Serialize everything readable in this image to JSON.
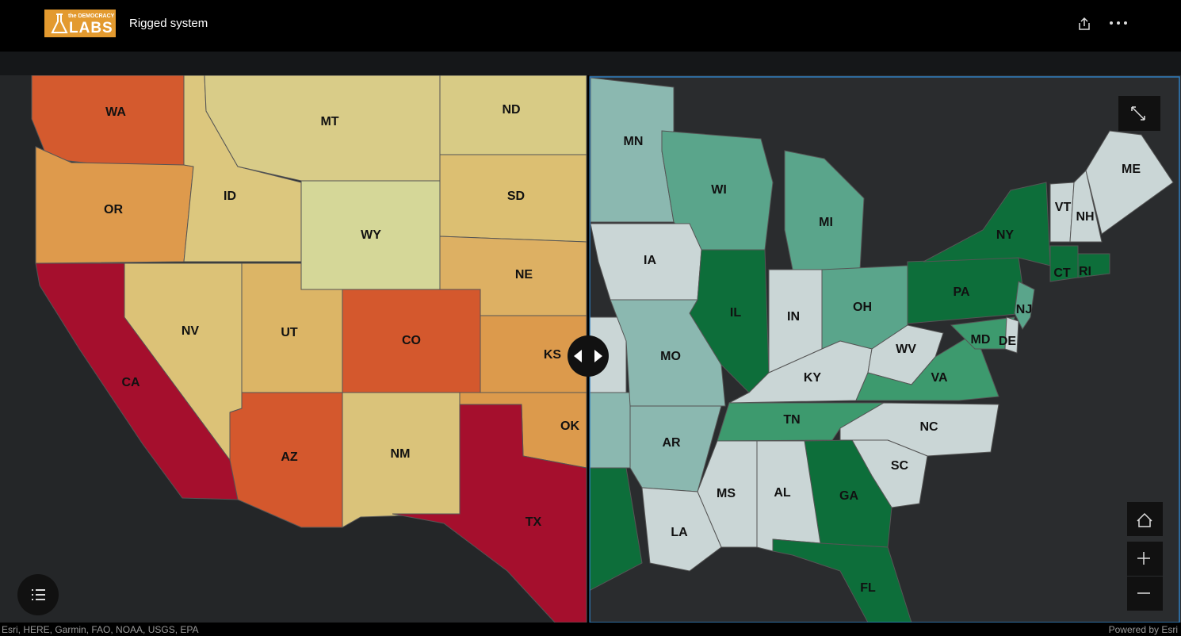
{
  "header": {
    "logo_top": "the DEMOCRACY",
    "logo_main": "LABS",
    "title": "Rigged system"
  },
  "left_map": {
    "states": [
      {
        "label": "WA",
        "color": "#d45a2e"
      },
      {
        "label": "OR",
        "color": "#de9a4c"
      },
      {
        "label": "ID",
        "color": "#dcc77e"
      },
      {
        "label": "MT",
        "color": "#d9cc88"
      },
      {
        "label": "ND",
        "color": "#d8cb85"
      },
      {
        "label": "SD",
        "color": "#dcbf72"
      },
      {
        "label": "WY",
        "color": "#d5d798"
      },
      {
        "label": "NE",
        "color": "#ddb063"
      },
      {
        "label": "CA",
        "color": "#a50f2d"
      },
      {
        "label": "NV",
        "color": "#dcc277"
      },
      {
        "label": "UT",
        "color": "#dcb566"
      },
      {
        "label": "CO",
        "color": "#d4582d"
      },
      {
        "label": "KS",
        "color": "#dc9a4c"
      },
      {
        "label": "AZ",
        "color": "#d4582d"
      },
      {
        "label": "NM",
        "color": "#dac37a"
      },
      {
        "label": "OK",
        "color": "#dc9a4c"
      },
      {
        "label": "TX",
        "color": "#a50f2d"
      }
    ]
  },
  "right_map": {
    "states": [
      {
        "label": "MN",
        "color": "#8bb8b0"
      },
      {
        "label": "WI",
        "color": "#5aa58b"
      },
      {
        "label": "MI",
        "color": "#5aa58b"
      },
      {
        "label": "IA",
        "color": "#cad6d6"
      },
      {
        "label": "IL",
        "color": "#0d6e3a"
      },
      {
        "label": "IN",
        "color": "#cad6d6"
      },
      {
        "label": "OH",
        "color": "#5aa58b"
      },
      {
        "label": "PA",
        "color": "#0d6e3a"
      },
      {
        "label": "NY",
        "color": "#0d6e3a"
      },
      {
        "label": "MO",
        "color": "#8bb8b0"
      },
      {
        "label": "KY",
        "color": "#cad6d6"
      },
      {
        "label": "WV",
        "color": "#cad6d6"
      },
      {
        "label": "VA",
        "color": "#3d9a6e"
      },
      {
        "label": "TN",
        "color": "#3d9a6e"
      },
      {
        "label": "NC",
        "color": "#cad6d6"
      },
      {
        "label": "SC",
        "color": "#cad6d6"
      },
      {
        "label": "GA",
        "color": "#0d6e3a"
      },
      {
        "label": "AL",
        "color": "#cad6d6"
      },
      {
        "label": "MS",
        "color": "#cad6d6"
      },
      {
        "label": "AR",
        "color": "#8bb8b0"
      },
      {
        "label": "LA",
        "color": "#cad6d6"
      },
      {
        "label": "FL",
        "color": "#0d6e3a"
      },
      {
        "label": "NJ",
        "color": "#5aa58b"
      },
      {
        "label": "MD",
        "color": "#3d9a6e"
      },
      {
        "label": "DE",
        "color": "#cad6d6"
      },
      {
        "label": "CT",
        "color": "#0d6e3a"
      },
      {
        "label": "RI",
        "color": "#0d6e3a"
      },
      {
        "label": "VT",
        "color": "#cad6d6"
      },
      {
        "label": "NH",
        "color": "#cad6d6"
      },
      {
        "label": "ME",
        "color": "#cad6d6"
      }
    ]
  },
  "footer": {
    "attribution": "Esri, HERE, Garmin, FAO, NOAA, USGS, EPA",
    "powered_by": "Powered by Esri"
  }
}
